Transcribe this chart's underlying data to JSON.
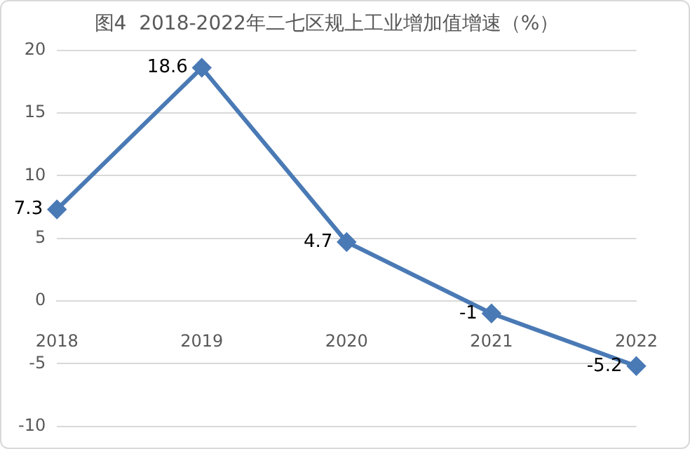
{
  "chart_data": {
    "type": "line",
    "title": "图4  2018-2022年二七区规上工业增加值增速（%）",
    "categories": [
      "2018",
      "2019",
      "2020",
      "2021",
      "2022"
    ],
    "series": [
      {
        "color": "#4a7ab5",
        "values": [
          7.3,
          18.6,
          4.7,
          -1,
          -5.2
        ]
      }
    ],
    "ylim": [
      -10,
      20
    ],
    "yticks": [
      -10,
      -5,
      0,
      5,
      10,
      15,
      20
    ],
    "grid": "y",
    "legend": false,
    "marker": "diamond",
    "line_style": "solid",
    "data_labels": true
  }
}
